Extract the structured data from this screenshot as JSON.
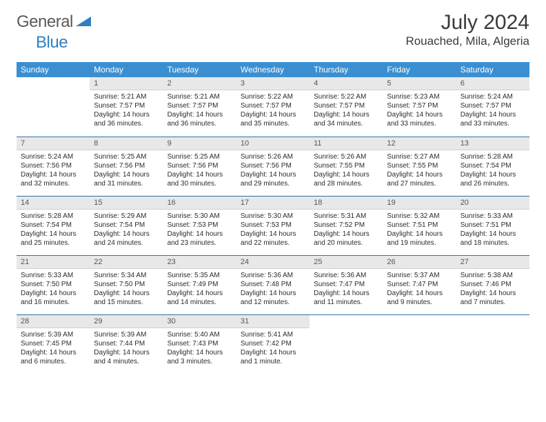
{
  "logo": {
    "word1": "General",
    "word2": "Blue"
  },
  "colors": {
    "header_bg": "#3b8fd1",
    "header_text": "#ffffff",
    "daynum_bg": "#e8e8e8",
    "daynum_text": "#555555",
    "body_text": "#2b2b2b",
    "week_border": "#2f6fa8",
    "logo_gray": "#5a5a5a",
    "logo_blue": "#2f7fc1"
  },
  "title": "July 2024",
  "location": "Rouached, Mila, Algeria",
  "weekdays": [
    "Sunday",
    "Monday",
    "Tuesday",
    "Wednesday",
    "Thursday",
    "Friday",
    "Saturday"
  ],
  "weeks": [
    [
      null,
      {
        "n": "1",
        "sunrise": "5:21 AM",
        "sunset": "7:57 PM",
        "daylight": "14 hours and 36 minutes."
      },
      {
        "n": "2",
        "sunrise": "5:21 AM",
        "sunset": "7:57 PM",
        "daylight": "14 hours and 36 minutes."
      },
      {
        "n": "3",
        "sunrise": "5:22 AM",
        "sunset": "7:57 PM",
        "daylight": "14 hours and 35 minutes."
      },
      {
        "n": "4",
        "sunrise": "5:22 AM",
        "sunset": "7:57 PM",
        "daylight": "14 hours and 34 minutes."
      },
      {
        "n": "5",
        "sunrise": "5:23 AM",
        "sunset": "7:57 PM",
        "daylight": "14 hours and 33 minutes."
      },
      {
        "n": "6",
        "sunrise": "5:24 AM",
        "sunset": "7:57 PM",
        "daylight": "14 hours and 33 minutes."
      }
    ],
    [
      {
        "n": "7",
        "sunrise": "5:24 AM",
        "sunset": "7:56 PM",
        "daylight": "14 hours and 32 minutes."
      },
      {
        "n": "8",
        "sunrise": "5:25 AM",
        "sunset": "7:56 PM",
        "daylight": "14 hours and 31 minutes."
      },
      {
        "n": "9",
        "sunrise": "5:25 AM",
        "sunset": "7:56 PM",
        "daylight": "14 hours and 30 minutes."
      },
      {
        "n": "10",
        "sunrise": "5:26 AM",
        "sunset": "7:56 PM",
        "daylight": "14 hours and 29 minutes."
      },
      {
        "n": "11",
        "sunrise": "5:26 AM",
        "sunset": "7:55 PM",
        "daylight": "14 hours and 28 minutes."
      },
      {
        "n": "12",
        "sunrise": "5:27 AM",
        "sunset": "7:55 PM",
        "daylight": "14 hours and 27 minutes."
      },
      {
        "n": "13",
        "sunrise": "5:28 AM",
        "sunset": "7:54 PM",
        "daylight": "14 hours and 26 minutes."
      }
    ],
    [
      {
        "n": "14",
        "sunrise": "5:28 AM",
        "sunset": "7:54 PM",
        "daylight": "14 hours and 25 minutes."
      },
      {
        "n": "15",
        "sunrise": "5:29 AM",
        "sunset": "7:54 PM",
        "daylight": "14 hours and 24 minutes."
      },
      {
        "n": "16",
        "sunrise": "5:30 AM",
        "sunset": "7:53 PM",
        "daylight": "14 hours and 23 minutes."
      },
      {
        "n": "17",
        "sunrise": "5:30 AM",
        "sunset": "7:53 PM",
        "daylight": "14 hours and 22 minutes."
      },
      {
        "n": "18",
        "sunrise": "5:31 AM",
        "sunset": "7:52 PM",
        "daylight": "14 hours and 20 minutes."
      },
      {
        "n": "19",
        "sunrise": "5:32 AM",
        "sunset": "7:51 PM",
        "daylight": "14 hours and 19 minutes."
      },
      {
        "n": "20",
        "sunrise": "5:33 AM",
        "sunset": "7:51 PM",
        "daylight": "14 hours and 18 minutes."
      }
    ],
    [
      {
        "n": "21",
        "sunrise": "5:33 AM",
        "sunset": "7:50 PM",
        "daylight": "14 hours and 16 minutes."
      },
      {
        "n": "22",
        "sunrise": "5:34 AM",
        "sunset": "7:50 PM",
        "daylight": "14 hours and 15 minutes."
      },
      {
        "n": "23",
        "sunrise": "5:35 AM",
        "sunset": "7:49 PM",
        "daylight": "14 hours and 14 minutes."
      },
      {
        "n": "24",
        "sunrise": "5:36 AM",
        "sunset": "7:48 PM",
        "daylight": "14 hours and 12 minutes."
      },
      {
        "n": "25",
        "sunrise": "5:36 AM",
        "sunset": "7:47 PM",
        "daylight": "14 hours and 11 minutes."
      },
      {
        "n": "26",
        "sunrise": "5:37 AM",
        "sunset": "7:47 PM",
        "daylight": "14 hours and 9 minutes."
      },
      {
        "n": "27",
        "sunrise": "5:38 AM",
        "sunset": "7:46 PM",
        "daylight": "14 hours and 7 minutes."
      }
    ],
    [
      {
        "n": "28",
        "sunrise": "5:39 AM",
        "sunset": "7:45 PM",
        "daylight": "14 hours and 6 minutes."
      },
      {
        "n": "29",
        "sunrise": "5:39 AM",
        "sunset": "7:44 PM",
        "daylight": "14 hours and 4 minutes."
      },
      {
        "n": "30",
        "sunrise": "5:40 AM",
        "sunset": "7:43 PM",
        "daylight": "14 hours and 3 minutes."
      },
      {
        "n": "31",
        "sunrise": "5:41 AM",
        "sunset": "7:42 PM",
        "daylight": "14 hours and 1 minute."
      },
      null,
      null,
      null
    ]
  ],
  "labels": {
    "sunrise": "Sunrise:",
    "sunset": "Sunset:",
    "daylight": "Daylight:"
  }
}
